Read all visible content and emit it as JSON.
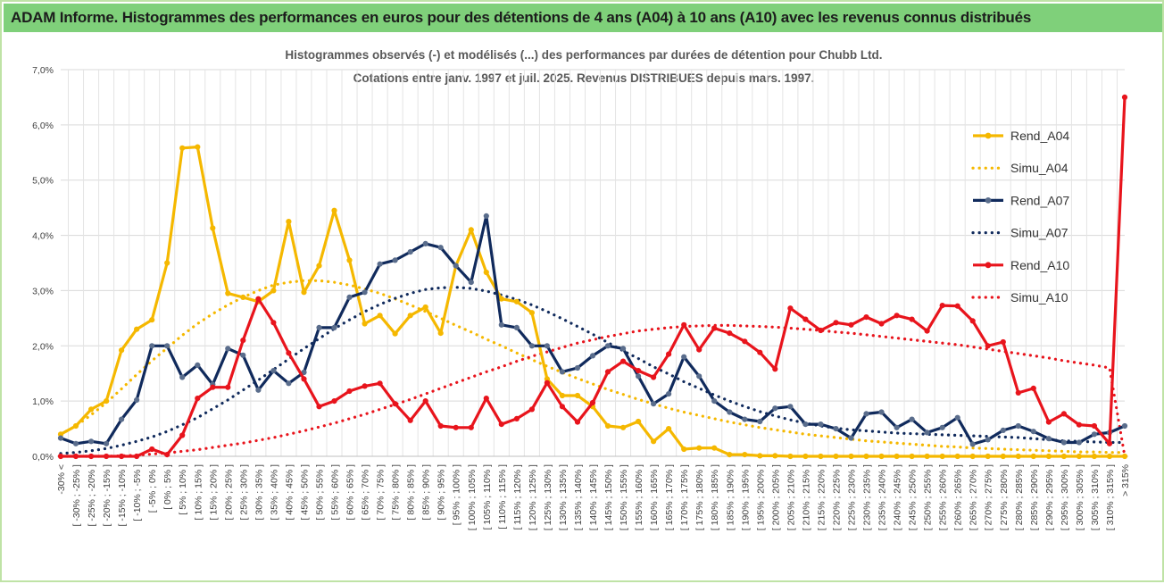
{
  "banner": {
    "title": "ADAM Informe. Histogrammes des performances en euros pour des détentions de 4 ans (A04) à 10 ans (A10) avec les revenus connus distribués"
  },
  "colors": {
    "A04": "#f5b800",
    "A07": "#102a5c",
    "A10": "#e8141c",
    "banner_bg": "#7fd07a",
    "grid": "#d9d9d9"
  },
  "chart_data": {
    "type": "line",
    "title": "Histogrammes observés (-) et modélisés (...) des performances par durées de détention pour Chubb Ltd.",
    "subtitle": "Cotations entre janv. 1997 et juil. 2025. Revenus DISTRIBUES depuis mars. 1997.",
    "ylim": [
      0,
      7.0
    ],
    "ytick_labels": [
      "0,0%",
      "1,0%",
      "2,0%",
      "3,0%",
      "4,0%",
      "5,0%",
      "6,0%",
      "7,0%"
    ],
    "grid": true,
    "legend_position": "right",
    "categories": [
      "-30% <",
      "[ -30% ; -25% ]",
      "[ -25% ; -20% ]",
      "[ -20% ; -15% ]",
      "[ -15% ; -10% ]",
      "[ -10% ; -5% ]",
      "[ -5% ; 0% ]",
      "[ 0% ; 5% ]",
      "[ 5% ; 10% ]",
      "[ 10% ; 15% ]",
      "[ 15% ; 20% ]",
      "[ 20% ; 25% ]",
      "[ 25% ; 30% ]",
      "[ 30% ; 35% ]",
      "[ 35% ; 40% ]",
      "[ 40% ; 45% ]",
      "[ 45% ; 50% ]",
      "[ 50% ; 55% ]",
      "[ 55% ; 60% ]",
      "[ 60% ; 65% ]",
      "[ 65% ; 70% ]",
      "[ 70% ; 75% ]",
      "[ 75% ; 80% ]",
      "[ 80% ; 85% ]",
      "[ 85% ; 90% ]",
      "[ 90% ; 95% ]",
      "[ 95% ; 100% ]",
      "[ 100% ; 105% ]",
      "[ 105% ; 110% ]",
      "[ 110% ; 115% ]",
      "[ 115% ; 120% ]",
      "[ 120% ; 125% ]",
      "[ 125% ; 130% ]",
      "[ 130% ; 135% ]",
      "[ 135% ; 140% ]",
      "[ 140% ; 145% ]",
      "[ 145% ; 150% ]",
      "[ 150% ; 155% ]",
      "[ 155% ; 160% ]",
      "[ 160% ; 165% ]",
      "[ 165% ; 170% ]",
      "[ 170% ; 175% ]",
      "[ 175% ; 180% ]",
      "[ 180% ; 185% ]",
      "[ 185% ; 190% ]",
      "[ 190% ; 195% ]",
      "[ 195% ; 200% ]",
      "[ 200% ; 205% ]",
      "[ 205% ; 210% ]",
      "[ 210% ; 215% ]",
      "[ 215% ; 220% ]",
      "[ 220% ; 225% ]",
      "[ 225% ; 230% ]",
      "[ 230% ; 235% ]",
      "[ 235% ; 240% ]",
      "[ 240% ; 245% ]",
      "[ 245% ; 250% ]",
      "[ 250% ; 255% ]",
      "[ 255% ; 260% ]",
      "[ 260% ; 265% ]",
      "[ 265% ; 270% ]",
      "[ 270% ; 275% ]",
      "[ 275% ; 280% ]",
      "[ 280% ; 285% ]",
      "[ 285% ; 290% ]",
      "[ 290% ; 295% ]",
      "[ 295% ; 300% ]",
      "[ 300% ; 305% ]",
      "[ 305% ; 310% ]",
      "[ 310% ; 315% ]",
      "> 315%"
    ],
    "series": [
      {
        "name": "Rend_A04",
        "style": "solid",
        "color": "#f5b800",
        "values": [
          0.4,
          0.55,
          0.85,
          1.0,
          1.92,
          2.3,
          2.47,
          3.5,
          5.58,
          5.6,
          4.13,
          2.95,
          2.88,
          2.8,
          3.0,
          4.25,
          2.97,
          3.45,
          4.45,
          3.55,
          2.4,
          2.55,
          2.22,
          2.55,
          2.7,
          2.23,
          3.45,
          4.1,
          3.33,
          2.85,
          2.8,
          2.6,
          1.4,
          1.1,
          1.1,
          0.9,
          0.55,
          0.52,
          0.63,
          0.27,
          0.5,
          0.13,
          0.15,
          0.15,
          0.03,
          0.03,
          0.01,
          0.01,
          0.0,
          0.0,
          0.0,
          0.0,
          0.0,
          0.0,
          0.0,
          0.0,
          0.0,
          0.0,
          0.0,
          0.0,
          0.0,
          0.0,
          0.0,
          0.0,
          0.0,
          0.0,
          0.0,
          0.0,
          0.0,
          0.0,
          0.0
        ]
      },
      {
        "name": "Simu_A04",
        "style": "dotted",
        "color": "#f5b800",
        "values": [
          0.4,
          0.55,
          0.75,
          0.97,
          1.22,
          1.48,
          1.73,
          1.96,
          2.19,
          2.4,
          2.58,
          2.74,
          2.88,
          3.0,
          3.1,
          3.15,
          3.18,
          3.18,
          3.15,
          3.1,
          3.03,
          2.95,
          2.85,
          2.74,
          2.62,
          2.5,
          2.37,
          2.25,
          2.12,
          2.0,
          1.87,
          1.75,
          1.63,
          1.52,
          1.41,
          1.31,
          1.21,
          1.12,
          1.03,
          0.95,
          0.87,
          0.8,
          0.74,
          0.68,
          0.62,
          0.57,
          0.52,
          0.48,
          0.44,
          0.4,
          0.37,
          0.34,
          0.31,
          0.28,
          0.26,
          0.24,
          0.22,
          0.2,
          0.18,
          0.17,
          0.15,
          0.14,
          0.13,
          0.12,
          0.11,
          0.1,
          0.09,
          0.08,
          0.08,
          0.07,
          0.07
        ]
      },
      {
        "name": "Rend_A07",
        "style": "solid",
        "color": "#102a5c",
        "values": [
          0.33,
          0.23,
          0.27,
          0.23,
          0.67,
          1.02,
          2.0,
          2.0,
          1.43,
          1.65,
          1.3,
          1.95,
          1.83,
          1.2,
          1.55,
          1.32,
          1.52,
          2.33,
          2.33,
          2.88,
          2.97,
          3.48,
          3.55,
          3.7,
          3.85,
          3.78,
          3.45,
          3.15,
          4.35,
          2.38,
          2.33,
          2.0,
          2.0,
          1.53,
          1.6,
          1.82,
          2.0,
          1.95,
          1.45,
          0.95,
          1.13,
          1.8,
          1.45,
          1.0,
          0.8,
          0.67,
          0.63,
          0.87,
          0.9,
          0.58,
          0.58,
          0.5,
          0.33,
          0.77,
          0.8,
          0.52,
          0.67,
          0.43,
          0.52,
          0.7,
          0.22,
          0.3,
          0.47,
          0.55,
          0.45,
          0.32,
          0.25,
          0.25,
          0.4,
          0.43,
          0.55
        ]
      },
      {
        "name": "Simu_A07",
        "style": "dotted",
        "color": "#102a5c",
        "values": [
          0.05,
          0.07,
          0.1,
          0.14,
          0.2,
          0.27,
          0.35,
          0.45,
          0.57,
          0.7,
          0.86,
          1.02,
          1.2,
          1.38,
          1.57,
          1.76,
          1.95,
          2.13,
          2.31,
          2.47,
          2.62,
          2.75,
          2.86,
          2.95,
          3.02,
          3.05,
          3.06,
          3.04,
          2.99,
          2.92,
          2.84,
          2.74,
          2.62,
          2.49,
          2.35,
          2.21,
          2.06,
          1.91,
          1.77,
          1.62,
          1.49,
          1.35,
          1.23,
          1.11,
          1.0,
          0.9,
          0.81,
          0.73,
          0.66,
          0.6,
          0.55,
          0.51,
          0.48,
          0.46,
          0.44,
          0.42,
          0.41,
          0.4,
          0.39,
          0.38,
          0.37,
          0.36,
          0.35,
          0.34,
          0.32,
          0.3,
          0.28,
          0.27,
          0.26,
          0.25,
          0.25
        ]
      },
      {
        "name": "Rend_A10",
        "style": "solid",
        "color": "#e8141c",
        "values": [
          0.0,
          0.0,
          0.0,
          0.0,
          0.0,
          0.0,
          0.13,
          0.03,
          0.38,
          1.05,
          1.25,
          1.25,
          2.1,
          2.85,
          2.42,
          1.87,
          1.4,
          0.9,
          1.0,
          1.18,
          1.27,
          1.32,
          0.95,
          0.65,
          1.0,
          0.55,
          0.52,
          0.52,
          1.05,
          0.58,
          0.68,
          0.85,
          1.33,
          0.9,
          0.62,
          0.97,
          1.53,
          1.72,
          1.55,
          1.43,
          1.85,
          2.38,
          1.93,
          2.32,
          2.23,
          2.08,
          1.88,
          1.58,
          2.68,
          2.48,
          2.28,
          2.42,
          2.38,
          2.52,
          2.4,
          2.55,
          2.48,
          2.27,
          2.73,
          2.72,
          2.45,
          2.0,
          2.07,
          1.15,
          1.23,
          0.62,
          0.77,
          0.57,
          0.55,
          0.23,
          6.5
        ]
      },
      {
        "name": "Simu_A10",
        "style": "dotted",
        "color": "#e8141c",
        "values": [
          0.0,
          0.0,
          0.0,
          0.0,
          0.01,
          0.02,
          0.04,
          0.06,
          0.09,
          0.12,
          0.16,
          0.2,
          0.24,
          0.29,
          0.34,
          0.4,
          0.46,
          0.53,
          0.6,
          0.68,
          0.76,
          0.85,
          0.94,
          1.03,
          1.13,
          1.23,
          1.33,
          1.43,
          1.53,
          1.62,
          1.72,
          1.81,
          1.89,
          1.97,
          2.05,
          2.11,
          2.17,
          2.22,
          2.27,
          2.3,
          2.33,
          2.35,
          2.36,
          2.37,
          2.37,
          2.36,
          2.35,
          2.34,
          2.32,
          2.3,
          2.28,
          2.25,
          2.23,
          2.2,
          2.17,
          2.14,
          2.11,
          2.08,
          2.05,
          2.02,
          1.98,
          1.94,
          1.9,
          1.86,
          1.82,
          1.78,
          1.73,
          1.69,
          1.65,
          1.6,
          0.0
        ]
      }
    ]
  }
}
